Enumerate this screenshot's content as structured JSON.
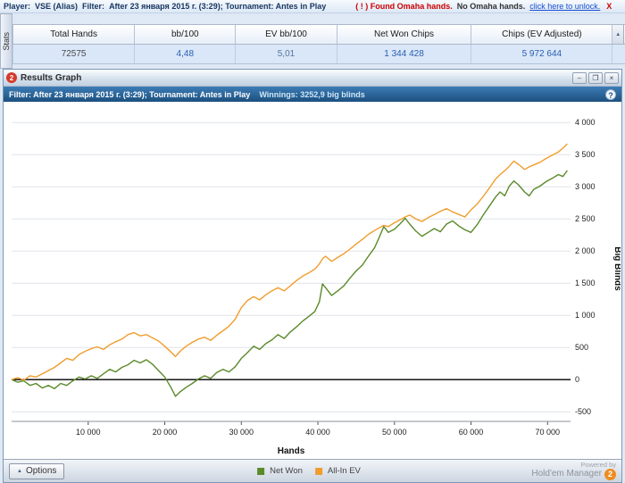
{
  "colors": {
    "net_won": "#5a8a2a",
    "all_in_ev": "#f09d2e",
    "filter_bar": "#1c507f",
    "warning_text": "#cc0000",
    "link_text": "#1a4fd0",
    "value_text": "#2a5db0",
    "brand_badge": "#f08c1e",
    "zero_line": "#000000"
  },
  "icons": {
    "up_arrow": "▲",
    "minimize": "–",
    "maximize": "❐",
    "close": "×",
    "help": "?",
    "app_badge": "2"
  },
  "top_bar": {
    "player_label": "Player:",
    "player_value": "VSE (Alias)",
    "filter_label": "Filter:",
    "filter_value": "After 23 января 2015 г. (3:29); Tournament: Antes in Play",
    "warning_text": "( ! )  Found Omaha hands.",
    "note_text": "No Omaha hands.",
    "link_text": "click here to unlock.",
    "close_text": "X"
  },
  "stats_tab": "Stats",
  "stats": {
    "columns": [
      {
        "label": "Total Hands",
        "value": "72575"
      },
      {
        "label": "bb/100",
        "value": "4,48"
      },
      {
        "label": "EV bb/100",
        "value": "5,01"
      },
      {
        "label": "Net Won Chips",
        "value": "1 344 428"
      },
      {
        "label": "Chips (EV Adjusted)",
        "value": "5 972 644"
      }
    ]
  },
  "window": {
    "title": "Results Graph",
    "filter_text": "Filter: After 23 января 2015 г. (3:29); Tournament: Antes in Play",
    "winnings_text": "Winnings: 3252,9 big blinds"
  },
  "bottom_bar": {
    "options_label": "Options",
    "powered_by": "Powered by",
    "brand": "Hold'em Manager",
    "brand_badge": "2"
  },
  "chart_data": {
    "type": "line",
    "title": "Results Graph",
    "xlabel": "Hands",
    "ylabel": "Big Blinds",
    "xlim": [
      0,
      73000
    ],
    "ylim": [
      -650,
      4100
    ],
    "xticks": [
      10000,
      20000,
      30000,
      40000,
      50000,
      60000,
      70000
    ],
    "yticks": [
      -500,
      0,
      500,
      1000,
      1500,
      2000,
      2500,
      3000,
      3500,
      4000
    ],
    "grid": true,
    "grid_color": "#e0e4e9",
    "zero_line": true,
    "legend_position": "bottom",
    "series": [
      {
        "name": "Net Won",
        "color": "#5a8a2a",
        "final_value": 3252.9,
        "points": [
          [
            0,
            0
          ],
          [
            800,
            -40
          ],
          [
            1600,
            -20
          ],
          [
            2400,
            -90
          ],
          [
            3200,
            -60
          ],
          [
            4000,
            -130
          ],
          [
            4800,
            -90
          ],
          [
            5600,
            -140
          ],
          [
            6400,
            -60
          ],
          [
            7200,
            -90
          ],
          [
            8000,
            -20
          ],
          [
            8800,
            40
          ],
          [
            9600,
            10
          ],
          [
            10400,
            60
          ],
          [
            11200,
            20
          ],
          [
            12000,
            90
          ],
          [
            12800,
            160
          ],
          [
            13600,
            120
          ],
          [
            14400,
            190
          ],
          [
            15200,
            230
          ],
          [
            16000,
            300
          ],
          [
            16800,
            260
          ],
          [
            17600,
            310
          ],
          [
            18400,
            240
          ],
          [
            19200,
            140
          ],
          [
            20000,
            40
          ],
          [
            20800,
            -120
          ],
          [
            21400,
            -260
          ],
          [
            22000,
            -190
          ],
          [
            22800,
            -120
          ],
          [
            23600,
            -60
          ],
          [
            24400,
            10
          ],
          [
            25200,
            60
          ],
          [
            26000,
            20
          ],
          [
            26800,
            110
          ],
          [
            27600,
            160
          ],
          [
            28400,
            120
          ],
          [
            29200,
            200
          ],
          [
            30000,
            330
          ],
          [
            30800,
            420
          ],
          [
            31600,
            520
          ],
          [
            32400,
            470
          ],
          [
            33200,
            560
          ],
          [
            34000,
            620
          ],
          [
            34800,
            700
          ],
          [
            35600,
            640
          ],
          [
            36400,
            740
          ],
          [
            37200,
            820
          ],
          [
            38000,
            910
          ],
          [
            38800,
            980
          ],
          [
            39600,
            1060
          ],
          [
            40200,
            1210
          ],
          [
            40600,
            1490
          ],
          [
            41000,
            1430
          ],
          [
            41800,
            1310
          ],
          [
            42600,
            1380
          ],
          [
            43400,
            1460
          ],
          [
            44200,
            1580
          ],
          [
            45000,
            1690
          ],
          [
            45800,
            1780
          ],
          [
            46600,
            1920
          ],
          [
            47400,
            2050
          ],
          [
            48000,
            2210
          ],
          [
            48600,
            2380
          ],
          [
            49200,
            2290
          ],
          [
            50000,
            2340
          ],
          [
            50800,
            2430
          ],
          [
            51400,
            2510
          ],
          [
            52000,
            2420
          ],
          [
            52800,
            2310
          ],
          [
            53600,
            2230
          ],
          [
            54400,
            2290
          ],
          [
            55200,
            2350
          ],
          [
            56000,
            2300
          ],
          [
            56800,
            2420
          ],
          [
            57600,
            2470
          ],
          [
            58400,
            2390
          ],
          [
            59200,
            2330
          ],
          [
            60000,
            2290
          ],
          [
            60800,
            2410
          ],
          [
            61600,
            2560
          ],
          [
            62400,
            2700
          ],
          [
            63200,
            2840
          ],
          [
            63800,
            2920
          ],
          [
            64400,
            2860
          ],
          [
            65000,
            3010
          ],
          [
            65600,
            3090
          ],
          [
            66200,
            3030
          ],
          [
            67000,
            2920
          ],
          [
            67600,
            2860
          ],
          [
            68200,
            2960
          ],
          [
            69000,
            3010
          ],
          [
            69800,
            3080
          ],
          [
            70600,
            3130
          ],
          [
            71400,
            3190
          ],
          [
            72000,
            3160
          ],
          [
            72575,
            3253
          ]
        ]
      },
      {
        "name": "All-In EV",
        "color": "#f09d2e",
        "final_value": 3668,
        "points": [
          [
            0,
            0
          ],
          [
            800,
            30
          ],
          [
            1600,
            -10
          ],
          [
            2400,
            60
          ],
          [
            3200,
            40
          ],
          [
            4000,
            90
          ],
          [
            4800,
            140
          ],
          [
            5600,
            190
          ],
          [
            6400,
            260
          ],
          [
            7200,
            330
          ],
          [
            8000,
            300
          ],
          [
            8800,
            390
          ],
          [
            9600,
            440
          ],
          [
            10400,
            480
          ],
          [
            11200,
            510
          ],
          [
            12000,
            470
          ],
          [
            12800,
            540
          ],
          [
            13600,
            590
          ],
          [
            14400,
            630
          ],
          [
            15200,
            700
          ],
          [
            16000,
            730
          ],
          [
            16800,
            680
          ],
          [
            17600,
            700
          ],
          [
            18400,
            650
          ],
          [
            19200,
            600
          ],
          [
            20000,
            520
          ],
          [
            20800,
            430
          ],
          [
            21400,
            360
          ],
          [
            22000,
            440
          ],
          [
            22800,
            520
          ],
          [
            23600,
            580
          ],
          [
            24400,
            630
          ],
          [
            25200,
            660
          ],
          [
            26000,
            610
          ],
          [
            26800,
            690
          ],
          [
            27600,
            760
          ],
          [
            28400,
            830
          ],
          [
            29200,
            940
          ],
          [
            30000,
            1120
          ],
          [
            30800,
            1230
          ],
          [
            31600,
            1290
          ],
          [
            32400,
            1240
          ],
          [
            33200,
            1320
          ],
          [
            34000,
            1380
          ],
          [
            34800,
            1430
          ],
          [
            35600,
            1380
          ],
          [
            36400,
            1460
          ],
          [
            37200,
            1540
          ],
          [
            38000,
            1610
          ],
          [
            38800,
            1660
          ],
          [
            39600,
            1720
          ],
          [
            40200,
            1800
          ],
          [
            40600,
            1880
          ],
          [
            41000,
            1920
          ],
          [
            41800,
            1840
          ],
          [
            42600,
            1900
          ],
          [
            43400,
            1960
          ],
          [
            44200,
            2030
          ],
          [
            45000,
            2110
          ],
          [
            45800,
            2180
          ],
          [
            46600,
            2260
          ],
          [
            47400,
            2320
          ],
          [
            48000,
            2360
          ],
          [
            48600,
            2400
          ],
          [
            49200,
            2380
          ],
          [
            50000,
            2440
          ],
          [
            50800,
            2490
          ],
          [
            51400,
            2530
          ],
          [
            52000,
            2560
          ],
          [
            52800,
            2500
          ],
          [
            53600,
            2460
          ],
          [
            54400,
            2520
          ],
          [
            55200,
            2570
          ],
          [
            56000,
            2620
          ],
          [
            56800,
            2660
          ],
          [
            57600,
            2610
          ],
          [
            58400,
            2570
          ],
          [
            59200,
            2530
          ],
          [
            60000,
            2640
          ],
          [
            60800,
            2730
          ],
          [
            61600,
            2850
          ],
          [
            62400,
            2980
          ],
          [
            63200,
            3120
          ],
          [
            63800,
            3190
          ],
          [
            64400,
            3250
          ],
          [
            65000,
            3320
          ],
          [
            65600,
            3400
          ],
          [
            66200,
            3350
          ],
          [
            67000,
            3270
          ],
          [
            67600,
            3310
          ],
          [
            68200,
            3340
          ],
          [
            69000,
            3380
          ],
          [
            69800,
            3440
          ],
          [
            70600,
            3490
          ],
          [
            71400,
            3540
          ],
          [
            72000,
            3600
          ],
          [
            72575,
            3668
          ]
        ]
      }
    ]
  }
}
